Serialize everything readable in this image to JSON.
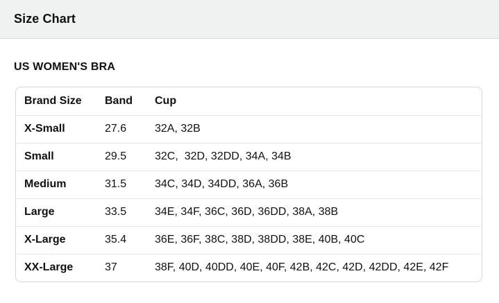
{
  "header": {
    "title": "Size Chart"
  },
  "section": {
    "title": "US WOMEN'S BRA"
  },
  "table": {
    "columns": [
      "Brand Size",
      "Band",
      "Cup"
    ],
    "rows": [
      {
        "brand_size": "X-Small",
        "band": "27.6",
        "cup": "32A, 32B"
      },
      {
        "brand_size": "Small",
        "band": "29.5",
        "cup": "32C,  32D, 32DD, 34A, 34B"
      },
      {
        "brand_size": "Medium",
        "band": "31.5",
        "cup": "34C, 34D, 34DD, 36A, 36B"
      },
      {
        "brand_size": "Large",
        "band": "33.5",
        "cup": "34E, 34F, 36C, 36D, 36DD, 38A, 38B"
      },
      {
        "brand_size": "X-Large",
        "band": "35.4",
        "cup": "36E, 36F, 38C, 38D, 38DD, 38E, 40B, 40C"
      },
      {
        "brand_size": "XX-Large",
        "band": "37",
        "cup": "38F, 40D, 40DD, 40E, 40F, 42B, 42C, 42D, 42DD, 42E, 42F"
      }
    ]
  },
  "colors": {
    "background": "#ffffff",
    "header_bg": "#f0f2f2",
    "header_border": "#d5dbdb",
    "table_border": "#d5d9d9",
    "row_divider": "#e7e7e7",
    "text": "#0f1111"
  }
}
